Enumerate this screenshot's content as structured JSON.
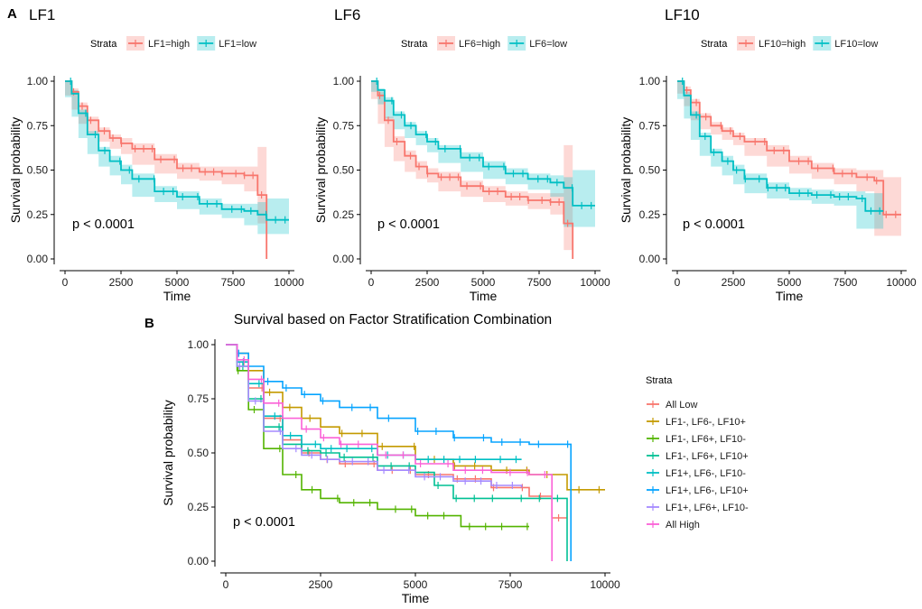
{
  "panel_labels": {
    "a": "A",
    "b": "B"
  },
  "colors": {
    "high": "#F8766D",
    "low": "#00BFC4",
    "combo": [
      "#F8766D",
      "#C49A00",
      "#53B400",
      "#00C094",
      "#00B6EB",
      "#06A4FF",
      "#A58AFF",
      "#FB61D7"
    ]
  },
  "chart_data": [
    {
      "type": "line",
      "subtype": "kaplan-meier",
      "title": "LF1",
      "xlabel": "Time",
      "ylabel": "Survival probability",
      "xlim": [
        0,
        10000
      ],
      "ylim": [
        0,
        1
      ],
      "xticks": [
        0,
        2500,
        5000,
        7500,
        10000
      ],
      "yticks": [
        0.0,
        0.25,
        0.5,
        0.75,
        1.0
      ],
      "ytick_labels": [
        "0.00",
        "0.25",
        "0.50",
        "0.75",
        "1.00"
      ],
      "xtick_labels": [
        "0",
        "2500",
        "5000",
        "7500",
        "10000"
      ],
      "legend_title": "Strata",
      "pvalue": "p < 0.0001",
      "series": [
        {
          "name": "LF1=high",
          "color": "#F8766D",
          "x": [
            0,
            300,
            600,
            1000,
            1500,
            2000,
            2500,
            3000,
            4000,
            5000,
            6000,
            7000,
            8000,
            8600,
            8600,
            9000,
            9000
          ],
          "y": [
            1.0,
            0.94,
            0.86,
            0.78,
            0.72,
            0.68,
            0.65,
            0.62,
            0.56,
            0.51,
            0.49,
            0.48,
            0.47,
            0.47,
            0.36,
            0.36,
            0.0
          ],
          "ci_lower": [
            1.0,
            0.92,
            0.84,
            0.76,
            0.7,
            0.66,
            0.62,
            0.59,
            0.53,
            0.48,
            0.45,
            0.44,
            0.42,
            0.38,
            0.24,
            0.2,
            0.0
          ],
          "ci_upper": [
            1.0,
            0.96,
            0.88,
            0.8,
            0.74,
            0.7,
            0.68,
            0.65,
            0.59,
            0.54,
            0.52,
            0.52,
            0.52,
            0.63,
            0.63,
            0.63,
            0.0
          ]
        },
        {
          "name": "LF1=low",
          "color": "#00BFC4",
          "x": [
            0,
            300,
            600,
            1000,
            1500,
            2000,
            2500,
            3000,
            4000,
            5000,
            6000,
            7000,
            8000,
            8600,
            9000,
            10000
          ],
          "y": [
            1.0,
            0.93,
            0.82,
            0.7,
            0.61,
            0.55,
            0.5,
            0.45,
            0.38,
            0.35,
            0.31,
            0.28,
            0.27,
            0.25,
            0.22,
            0.22
          ],
          "ci_lower": [
            1.0,
            0.91,
            0.8,
            0.68,
            0.59,
            0.52,
            0.47,
            0.42,
            0.35,
            0.32,
            0.28,
            0.25,
            0.23,
            0.19,
            0.14,
            0.14
          ],
          "ci_upper": [
            1.0,
            0.95,
            0.84,
            0.72,
            0.63,
            0.58,
            0.53,
            0.48,
            0.41,
            0.38,
            0.34,
            0.31,
            0.31,
            0.32,
            0.34,
            0.34
          ]
        }
      ]
    },
    {
      "type": "line",
      "subtype": "kaplan-meier",
      "title": "LF6",
      "xlabel": "Time",
      "ylabel": "Survival probability",
      "xlim": [
        0,
        10000
      ],
      "ylim": [
        0,
        1
      ],
      "xticks": [
        0,
        2500,
        5000,
        7500,
        10000
      ],
      "yticks": [
        0.0,
        0.25,
        0.5,
        0.75,
        1.0
      ],
      "ytick_labels": [
        "0.00",
        "0.25",
        "0.50",
        "0.75",
        "1.00"
      ],
      "xtick_labels": [
        "0",
        "2500",
        "5000",
        "7500",
        "10000"
      ],
      "legend_title": "Strata",
      "pvalue": "p < 0.0001",
      "series": [
        {
          "name": "LF6=high",
          "color": "#F8766D",
          "x": [
            0,
            300,
            600,
            1000,
            1500,
            2000,
            2500,
            3000,
            4000,
            5000,
            6000,
            7000,
            8000,
            8600,
            8600,
            9000,
            9000
          ],
          "y": [
            1.0,
            0.92,
            0.78,
            0.66,
            0.58,
            0.52,
            0.48,
            0.46,
            0.41,
            0.38,
            0.35,
            0.33,
            0.32,
            0.32,
            0.2,
            0.05,
            0.0
          ],
          "ci_lower": [
            1.0,
            0.9,
            0.76,
            0.63,
            0.55,
            0.49,
            0.45,
            0.43,
            0.38,
            0.35,
            0.32,
            0.3,
            0.28,
            0.25,
            0.05,
            0.05,
            0.0
          ],
          "ci_upper": [
            1.0,
            0.94,
            0.8,
            0.69,
            0.61,
            0.55,
            0.51,
            0.49,
            0.44,
            0.41,
            0.38,
            0.37,
            0.37,
            0.64,
            0.64,
            0.64,
            0.0
          ]
        },
        {
          "name": "LF6=low",
          "color": "#00BFC4",
          "x": [
            0,
            300,
            600,
            1000,
            1500,
            2000,
            2500,
            3000,
            4000,
            5000,
            6000,
            7000,
            8000,
            8600,
            9000,
            10000
          ],
          "y": [
            1.0,
            0.95,
            0.89,
            0.81,
            0.75,
            0.7,
            0.66,
            0.62,
            0.57,
            0.52,
            0.48,
            0.45,
            0.43,
            0.4,
            0.3,
            0.3
          ],
          "ci_lower": [
            1.0,
            0.94,
            0.87,
            0.79,
            0.73,
            0.68,
            0.64,
            0.6,
            0.54,
            0.49,
            0.45,
            0.42,
            0.39,
            0.35,
            0.18,
            0.18
          ],
          "ci_upper": [
            1.0,
            0.96,
            0.91,
            0.83,
            0.77,
            0.72,
            0.68,
            0.64,
            0.6,
            0.55,
            0.51,
            0.48,
            0.47,
            0.46,
            0.5,
            0.5
          ]
        }
      ]
    },
    {
      "type": "line",
      "subtype": "kaplan-meier",
      "title": "LF10",
      "xlabel": "Time",
      "ylabel": "Survival probability",
      "xlim": [
        0,
        10000
      ],
      "ylim": [
        0,
        1
      ],
      "xticks": [
        0,
        2500,
        5000,
        7500,
        10000
      ],
      "yticks": [
        0.0,
        0.25,
        0.5,
        0.75,
        1.0
      ],
      "ytick_labels": [
        "0.00",
        "0.25",
        "0.50",
        "0.75",
        "1.00"
      ],
      "xtick_labels": [
        "0",
        "2500",
        "5000",
        "7500",
        "10000"
      ],
      "legend_title": "Strata",
      "pvalue": "p < 0.0001",
      "series": [
        {
          "name": "LF10=high",
          "color": "#F8766D",
          "x": [
            0,
            300,
            600,
            1000,
            1500,
            2000,
            2500,
            3000,
            4000,
            5000,
            6000,
            7000,
            8000,
            8800,
            9200,
            10000
          ],
          "y": [
            1.0,
            0.95,
            0.88,
            0.8,
            0.75,
            0.72,
            0.69,
            0.66,
            0.61,
            0.55,
            0.51,
            0.48,
            0.46,
            0.44,
            0.25,
            0.25
          ],
          "ci_lower": [
            1.0,
            0.93,
            0.86,
            0.78,
            0.73,
            0.7,
            0.67,
            0.64,
            0.58,
            0.52,
            0.48,
            0.45,
            0.42,
            0.38,
            0.13,
            0.13
          ],
          "ci_upper": [
            1.0,
            0.97,
            0.9,
            0.82,
            0.77,
            0.74,
            0.71,
            0.68,
            0.64,
            0.58,
            0.54,
            0.51,
            0.5,
            0.5,
            0.46,
            0.46
          ]
        },
        {
          "name": "LF10=low",
          "color": "#00BFC4",
          "x": [
            0,
            300,
            600,
            1000,
            1500,
            2000,
            2500,
            3000,
            4000,
            5000,
            6000,
            7000,
            8000,
            8400,
            9200
          ],
          "y": [
            1.0,
            0.92,
            0.81,
            0.69,
            0.6,
            0.55,
            0.5,
            0.45,
            0.4,
            0.37,
            0.36,
            0.35,
            0.34,
            0.27,
            0.27
          ],
          "ci_lower": [
            1.0,
            0.9,
            0.79,
            0.67,
            0.58,
            0.52,
            0.47,
            0.42,
            0.37,
            0.34,
            0.33,
            0.31,
            0.3,
            0.17,
            0.17
          ],
          "ci_upper": [
            1.0,
            0.94,
            0.83,
            0.71,
            0.62,
            0.58,
            0.53,
            0.48,
            0.43,
            0.4,
            0.39,
            0.38,
            0.38,
            0.37,
            0.37
          ]
        }
      ]
    },
    {
      "type": "line",
      "subtype": "kaplan-meier",
      "title": "Survival based on Factor Stratification Combination",
      "xlabel": "Time",
      "ylabel": "Survival probability",
      "xlim": [
        0,
        10000
      ],
      "ylim": [
        0,
        1
      ],
      "xticks": [
        0,
        2500,
        5000,
        7500,
        10000
      ],
      "yticks": [
        0.0,
        0.25,
        0.5,
        0.75,
        1.0
      ],
      "ytick_labels": [
        "0.00",
        "0.25",
        "0.50",
        "0.75",
        "1.00"
      ],
      "xtick_labels": [
        "0",
        "2500",
        "5000",
        "7500",
        "10000"
      ],
      "legend_title": "Strata",
      "legend_position": "right",
      "pvalue": "p < 0.0001",
      "series": [
        {
          "name": "All Low",
          "color": "#F8766D",
          "x": [
            0,
            300,
            600,
            1000,
            1500,
            2000,
            2500,
            3000,
            4000,
            5000,
            6000,
            7000,
            8000,
            8600,
            9000
          ],
          "y": [
            1.0,
            0.92,
            0.8,
            0.66,
            0.56,
            0.5,
            0.47,
            0.45,
            0.42,
            0.4,
            0.38,
            0.34,
            0.3,
            0.2,
            0.2
          ]
        },
        {
          "name": "LF1-, LF6-, LF10+",
          "color": "#C49A00",
          "x": [
            0,
            300,
            600,
            1000,
            1500,
            2000,
            2500,
            3000,
            4000,
            5000,
            6000,
            7000,
            8000,
            9000,
            10000
          ],
          "y": [
            1.0,
            0.96,
            0.88,
            0.78,
            0.71,
            0.66,
            0.62,
            0.59,
            0.53,
            0.47,
            0.44,
            0.42,
            0.4,
            0.33,
            0.33
          ]
        },
        {
          "name": "LF1-, LF6+, LF10-",
          "color": "#53B400",
          "x": [
            0,
            300,
            600,
            1000,
            1500,
            2000,
            2500,
            3000,
            4000,
            5000,
            6000,
            6200,
            7000,
            8000
          ],
          "y": [
            1.0,
            0.88,
            0.7,
            0.52,
            0.4,
            0.33,
            0.29,
            0.27,
            0.24,
            0.21,
            0.21,
            0.16,
            0.16,
            0.16
          ]
        },
        {
          "name": "LF1-, LF6+, LF10+",
          "color": "#00C094",
          "x": [
            0,
            300,
            600,
            1000,
            1500,
            2000,
            2500,
            3000,
            4000,
            5000,
            5500,
            6000,
            7000,
            8000,
            9000,
            9000
          ],
          "y": [
            1.0,
            0.9,
            0.75,
            0.62,
            0.54,
            0.51,
            0.5,
            0.48,
            0.44,
            0.41,
            0.35,
            0.29,
            0.29,
            0.29,
            0.29,
            0.0
          ]
        },
        {
          "name": "LF1+, LF6-, LF10-",
          "color": "#00BFC4",
          "x": [
            0,
            300,
            600,
            1000,
            1500,
            2000,
            2500,
            3000,
            4000,
            5000,
            6000,
            7000,
            7800
          ],
          "y": [
            1.0,
            0.92,
            0.82,
            0.67,
            0.58,
            0.54,
            0.52,
            0.52,
            0.49,
            0.47,
            0.47,
            0.47,
            0.47
          ]
        },
        {
          "name": "LF1+, LF6-, LF10+",
          "color": "#06A4FF",
          "x": [
            0,
            300,
            600,
            1000,
            1500,
            2000,
            2500,
            3000,
            4000,
            5000,
            6000,
            7000,
            8000,
            9100,
            9100
          ],
          "y": [
            1.0,
            0.96,
            0.9,
            0.83,
            0.8,
            0.77,
            0.74,
            0.71,
            0.66,
            0.6,
            0.57,
            0.55,
            0.54,
            0.54,
            0.0
          ]
        },
        {
          "name": "LF1+, LF6+, LF10-",
          "color": "#A58AFF",
          "x": [
            0,
            300,
            600,
            1000,
            1500,
            2000,
            2500,
            3000,
            4000,
            5000,
            6000,
            7000,
            7800
          ],
          "y": [
            1.0,
            0.9,
            0.74,
            0.6,
            0.52,
            0.49,
            0.47,
            0.46,
            0.42,
            0.39,
            0.37,
            0.35,
            0.34
          ]
        },
        {
          "name": "All High",
          "color": "#FB61D7",
          "x": [
            0,
            300,
            600,
            1000,
            1500,
            2000,
            2500,
            3000,
            4000,
            5000,
            6000,
            7000,
            8000,
            8600,
            8600
          ],
          "y": [
            1.0,
            0.93,
            0.84,
            0.73,
            0.66,
            0.61,
            0.57,
            0.54,
            0.49,
            0.45,
            0.42,
            0.41,
            0.4,
            0.4,
            0.0
          ]
        }
      ]
    }
  ]
}
